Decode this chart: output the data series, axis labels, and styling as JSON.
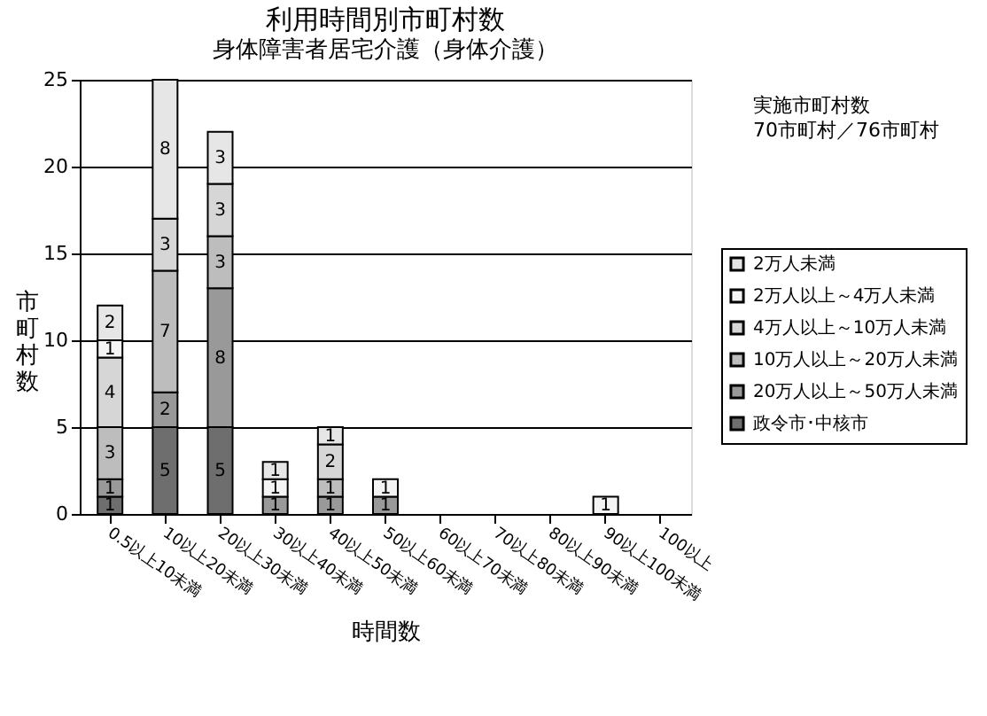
{
  "chart_data": {
    "type": "bar",
    "title": "利用時間別市町村数",
    "subtitle": "身体障害者居宅介護（身体介護）",
    "xlabel": "時間数",
    "ylabel": "市町村数",
    "categories": [
      "0.5以上10未満",
      "10以上20未満",
      "20以上30未満",
      "30以上40未満",
      "40以上50未満",
      "50以上60未満",
      "60以上70未満",
      "70以上80未満",
      "80以上90未満",
      "90以上100未満",
      "100以上"
    ],
    "stacked": true,
    "data_labels": true,
    "grid": "y",
    "legend": "right",
    "ylim": [
      0,
      25
    ],
    "yticks": [
      0,
      5,
      10,
      15,
      20,
      25
    ],
    "annotations": [
      "実施市町村数",
      "70市町村／76市町村"
    ],
    "series": [
      {
        "name": "政令市･中核市",
        "color": "#6e6e6e",
        "values": [
          1,
          5,
          5,
          null,
          null,
          null,
          null,
          null,
          null,
          null,
          null
        ]
      },
      {
        "name": "20万人以上～50万人未満",
        "color": "#999999",
        "values": [
          1,
          2,
          8,
          1,
          1,
          1,
          null,
          null,
          null,
          null,
          null
        ]
      },
      {
        "name": "10万人以上～20万人未満",
        "color": "#bdbdbd",
        "values": [
          3,
          7,
          3,
          null,
          1,
          null,
          null,
          null,
          null,
          null,
          null
        ]
      },
      {
        "name": "4万人以上～10万人未満",
        "color": "#d6d6d6",
        "values": [
          4,
          3,
          3,
          null,
          2,
          null,
          null,
          null,
          null,
          null,
          null
        ]
      },
      {
        "name": "2万人以上～4万人未満",
        "color": "#f4f4f4",
        "values": [
          1,
          null,
          null,
          1,
          null,
          1,
          null,
          null,
          null,
          1,
          null
        ]
      },
      {
        "name": "2万人未満",
        "color": "#e6e6e6",
        "values": [
          2,
          8,
          3,
          1,
          1,
          null,
          null,
          null,
          null,
          null,
          null
        ]
      }
    ]
  }
}
